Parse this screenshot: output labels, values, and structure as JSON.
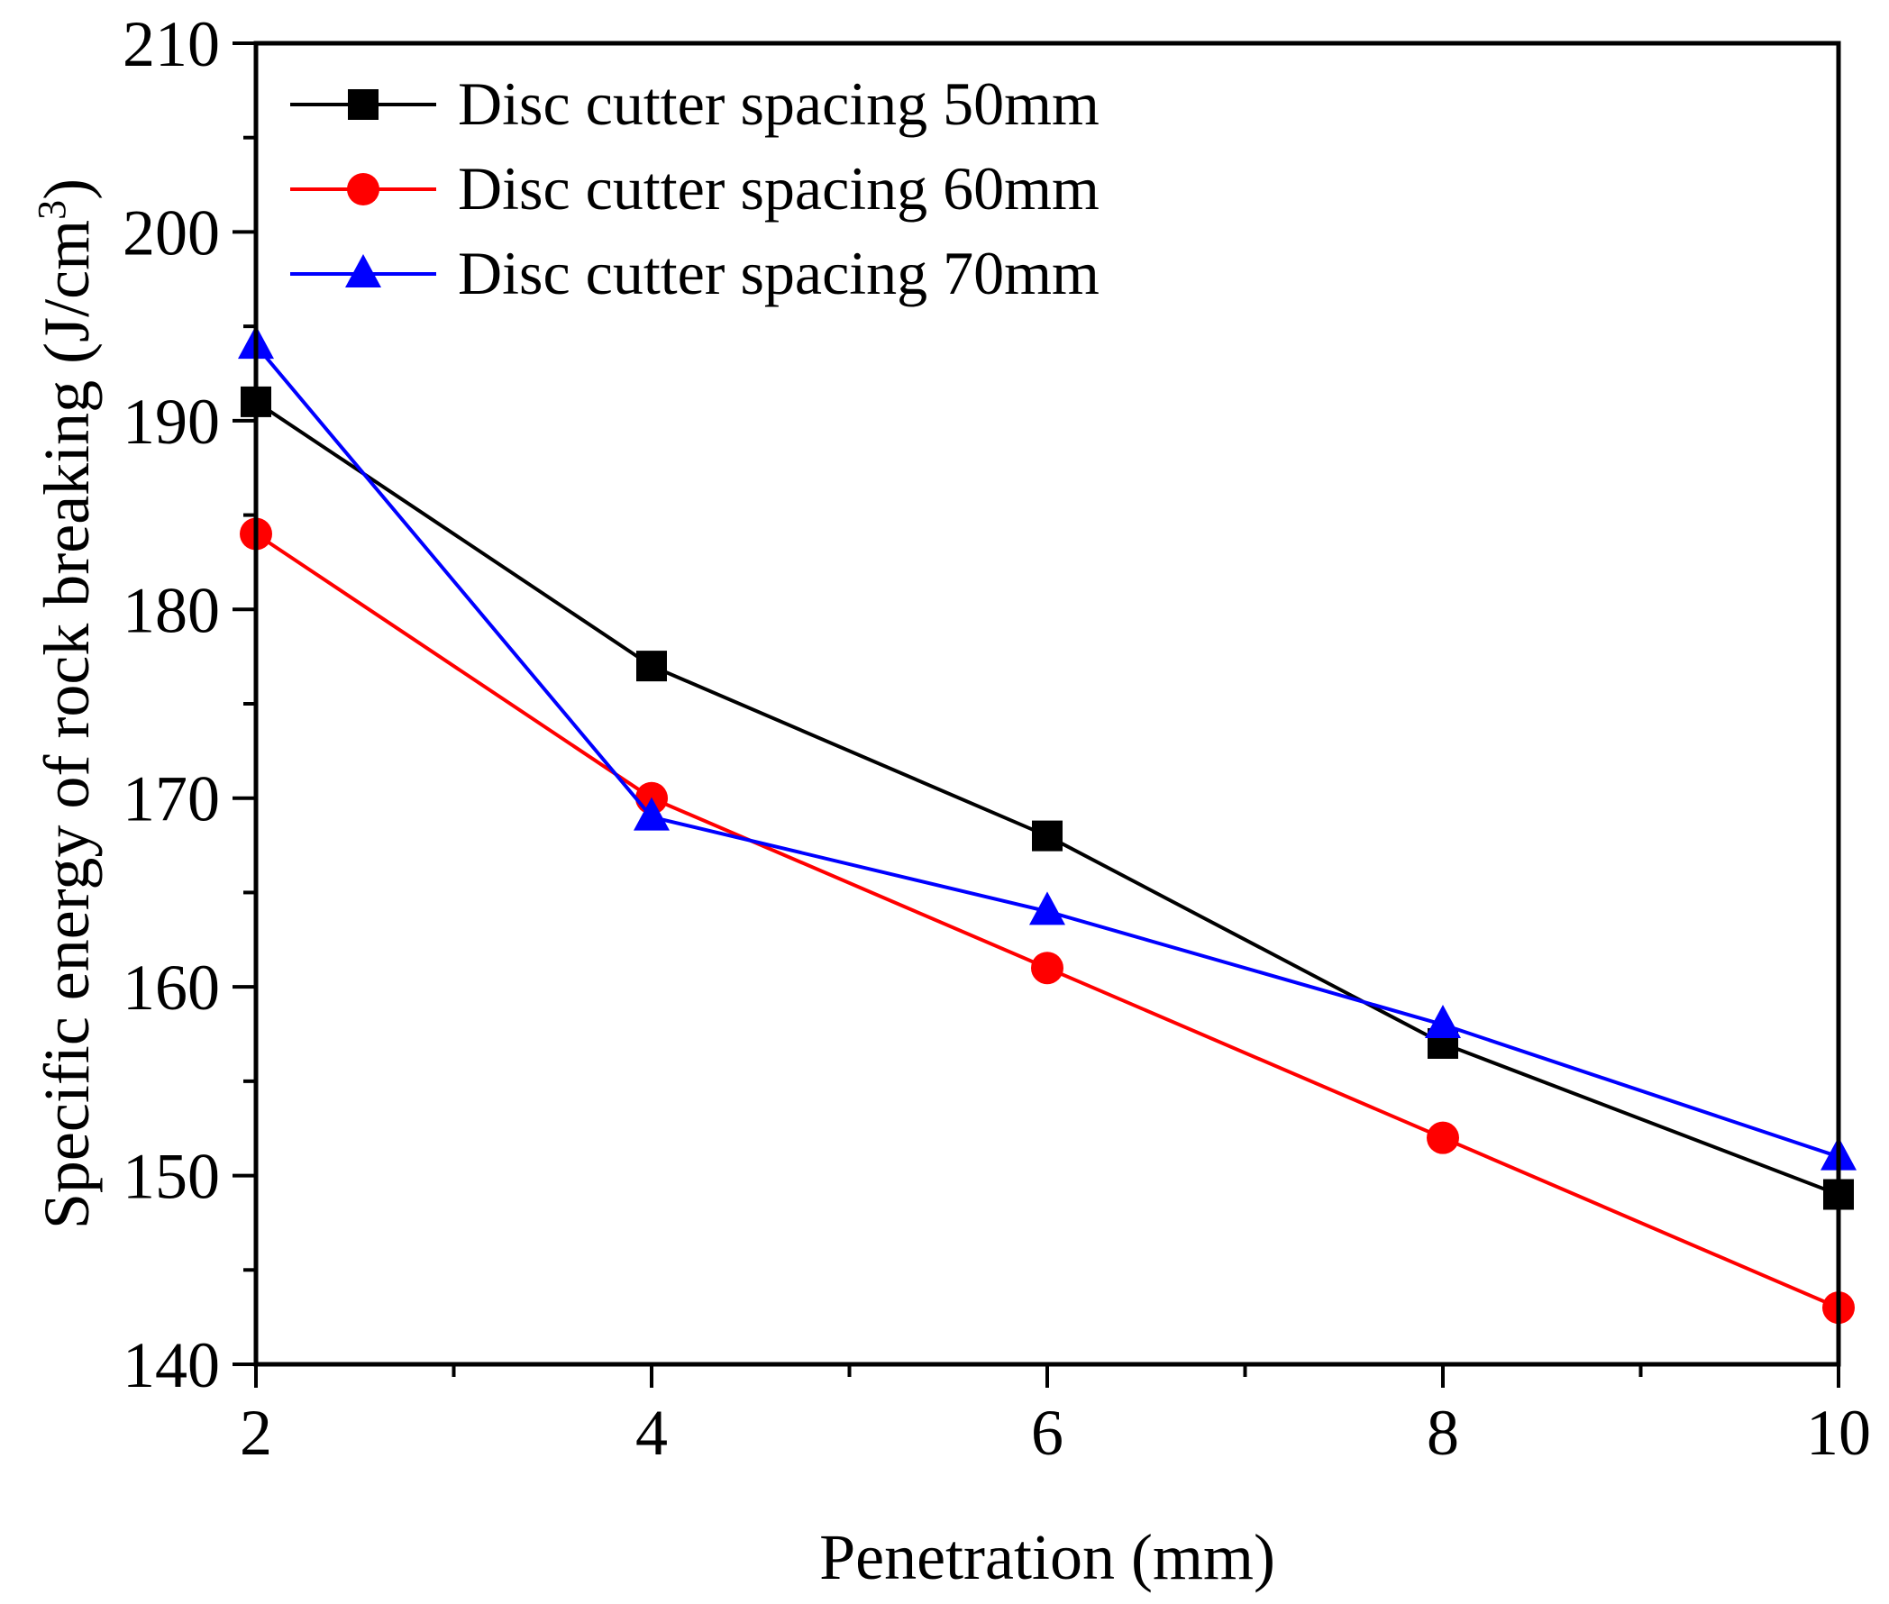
{
  "chart_data": {
    "type": "line",
    "title": "",
    "xlabel": "Penetration (mm)",
    "ylabel": "Specific energy of rock breaking (J/cm",
    "ylabel_sup": "3",
    "ylabel_close": ")",
    "x": [
      2,
      4,
      6,
      8,
      10
    ],
    "xlim": [
      2,
      10
    ],
    "ylim": [
      140,
      210
    ],
    "x_ticks": [
      "2",
      "4",
      "6",
      "8",
      "10"
    ],
    "y_ticks": [
      "140",
      "150",
      "160",
      "170",
      "180",
      "190",
      "200",
      "210"
    ],
    "legend_position": "top-left",
    "series": [
      {
        "name": "Disc cutter spacing 50mm",
        "color": "#000000",
        "marker": "square",
        "values": [
          191,
          177,
          168,
          157,
          149
        ]
      },
      {
        "name": "Disc cutter spacing 60mm",
        "color": "#ff0000",
        "marker": "circle",
        "values": [
          184,
          170,
          161,
          152,
          143
        ]
      },
      {
        "name": "Disc cutter spacing 70mm",
        "color": "#0000ff",
        "marker": "triangle",
        "values": [
          194,
          169,
          164,
          158,
          151
        ]
      }
    ]
  }
}
